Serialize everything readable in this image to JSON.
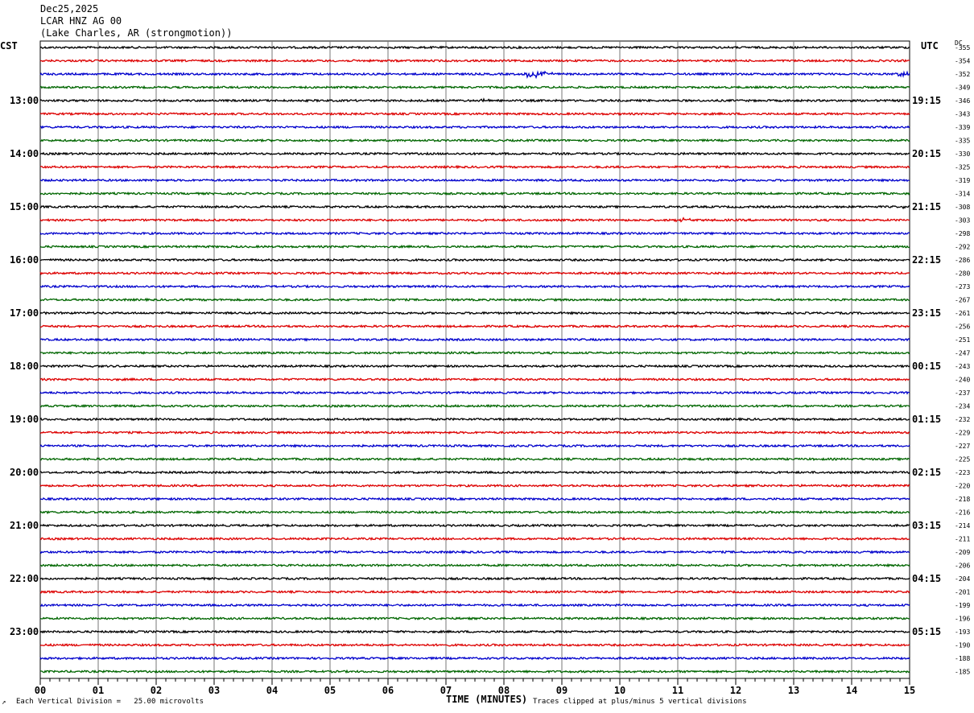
{
  "header": {
    "date": "Dec25,2025",
    "station": "LCAR HNZ AG 00",
    "location": "(Lake Charles, AR (strongmotion))"
  },
  "left_tz": "CST",
  "right_tz": "UTC",
  "dc_label": "DC",
  "footer": {
    "corner": "↗",
    "division": "Each Vertical Division =   25.00 microvolts",
    "xlabel": "TIME (MINUTES)",
    "clip": "Traces clipped at plus/minus 5 vertical divisions"
  },
  "chart_data": {
    "type": "line",
    "title": "",
    "xlabel": "TIME (MINUTES)",
    "xlim": [
      0,
      15
    ],
    "x_ticks": [
      "00",
      "01",
      "02",
      "03",
      "04",
      "05",
      "06",
      "07",
      "08",
      "09",
      "10",
      "11",
      "12",
      "13",
      "14",
      "15"
    ],
    "trace_colors": [
      "#000000",
      "#dd0000",
      "#0000cc",
      "#006600"
    ],
    "left_hour_labels": [
      "13:00",
      "14:00",
      "15:00",
      "16:00",
      "17:00",
      "18:00",
      "19:00",
      "20:00",
      "21:00",
      "22:00",
      "23:00"
    ],
    "right_hour_labels": [
      "19:15",
      "20:15",
      "21:15",
      "22:15",
      "23:15",
      "00:15",
      "01:15",
      "02:15",
      "03:15",
      "04:15",
      "05:15"
    ],
    "first_labeled_trace": 4,
    "trace_count": 48,
    "dc_offsets": [
      "-355",
      "-354",
      "-352",
      "-349",
      "-346",
      "-343",
      "-339",
      "-335",
      "-330",
      "-325",
      "-319",
      "-314",
      "-308",
      "-303",
      "-298",
      "-292",
      "-286",
      "-280",
      "-273",
      "-267",
      "-261",
      "-256",
      "-251",
      "-247",
      "-243",
      "-240",
      "-237",
      "-234",
      "-232",
      "-229",
      "-227",
      "-225",
      "-223",
      "-220",
      "-218",
      "-216",
      "-214",
      "-211",
      "-209",
      "-206",
      "-204",
      "-201",
      "-199",
      "-196",
      "-193",
      "-190",
      "-188",
      "-185"
    ],
    "events": [
      {
        "trace": 2,
        "minute": 8.5,
        "amplitude": 6
      },
      {
        "trace": 2,
        "minute": 8.7,
        "amplitude": 3
      },
      {
        "trace": 2,
        "minute": 14.9,
        "amplitude": 3
      },
      {
        "trace": 4,
        "minute": 7.7,
        "amplitude": 2
      },
      {
        "trace": 13,
        "minute": 11.1,
        "amplitude": 2.5
      },
      {
        "trace": 12,
        "minute": 15.0,
        "amplitude": 3
      }
    ]
  }
}
